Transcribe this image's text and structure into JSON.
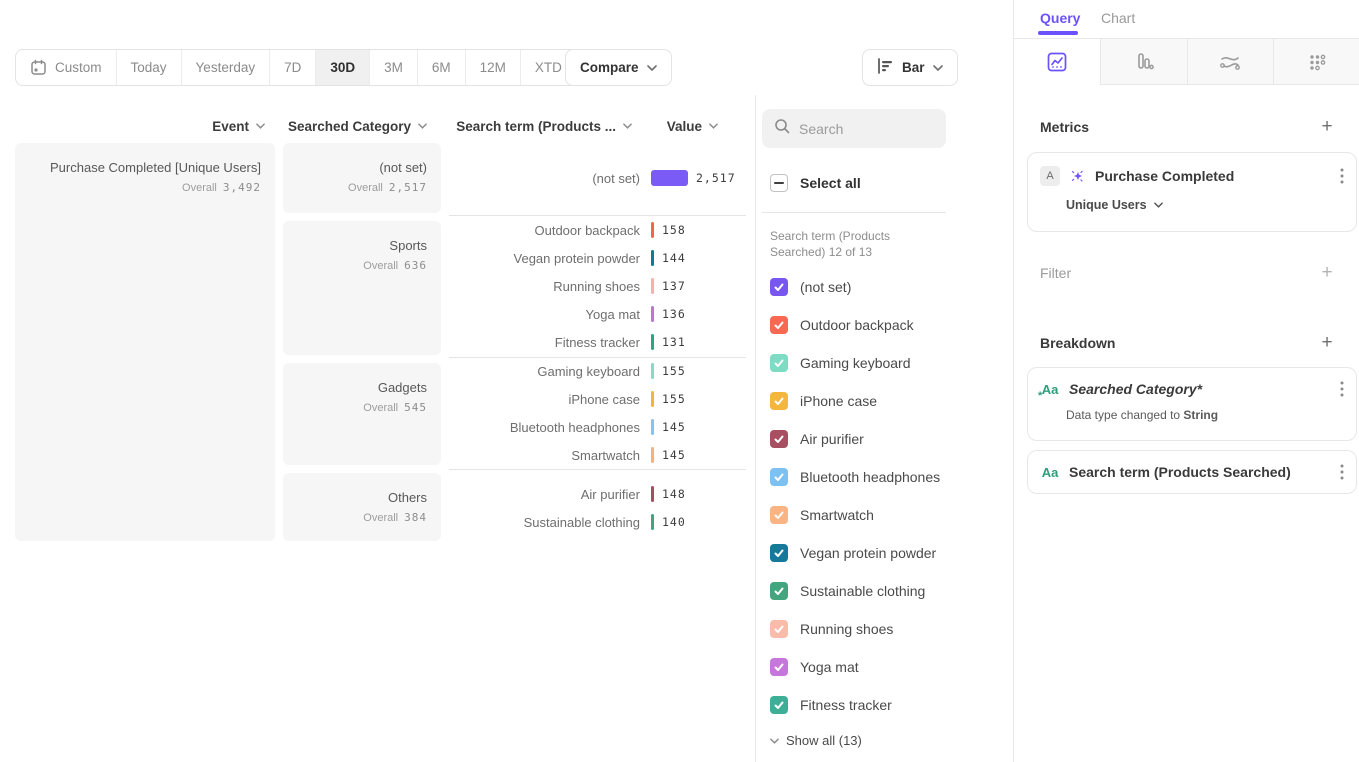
{
  "toolbar": {
    "date_ranges": [
      "Custom",
      "Today",
      "Yesterday",
      "7D",
      "30D",
      "3M",
      "6M",
      "12M",
      "XTD"
    ],
    "active_range": "30D",
    "compare_label": "Compare",
    "chart_type_label": "Bar"
  },
  "table": {
    "columns": [
      "Event",
      "Searched Category",
      "Search term (Products ...",
      "Value"
    ],
    "overall_label": "Overall",
    "event": {
      "name": "Purchase Completed [Unique Users]",
      "overall": "3,492"
    },
    "groups": [
      {
        "category": "(not set)",
        "overall": "2,517",
        "rows": [
          {
            "term": "(not set)",
            "value": "2,517",
            "num": 2517,
            "color": "#7b5bf5"
          }
        ]
      },
      {
        "category": "Sports",
        "overall": "636",
        "rows": [
          {
            "term": "Outdoor backpack",
            "value": "158",
            "num": 158,
            "color": "#f3664a"
          },
          {
            "term": "Vegan protein powder",
            "value": "144",
            "num": 144,
            "color": "#127897"
          },
          {
            "term": "Running shoes",
            "value": "137",
            "num": 137,
            "color": "#f8b1a0"
          },
          {
            "term": "Yoga mat",
            "value": "136",
            "num": 136,
            "color": "#c173d4"
          },
          {
            "term": "Fitness tracker",
            "value": "131",
            "num": 131,
            "color": "#2da583"
          }
        ]
      },
      {
        "category": "Gadgets",
        "overall": "545",
        "rows": [
          {
            "term": "Gaming keyboard",
            "value": "155",
            "num": 155,
            "color": "#82dcc6"
          },
          {
            "term": "iPhone case",
            "value": "155",
            "num": 155,
            "color": "#f6b53a"
          },
          {
            "term": "Bluetooth headphones",
            "value": "145",
            "num": 145,
            "color": "#84c3f3"
          },
          {
            "term": "Smartwatch",
            "value": "145",
            "num": 145,
            "color": "#fbb077"
          }
        ]
      },
      {
        "category": "Others",
        "overall": "384",
        "rows": [
          {
            "term": "Air purifier",
            "value": "148",
            "num": 148,
            "color": "#a84d5f"
          },
          {
            "term": "Sustainable clothing",
            "value": "140",
            "num": 140,
            "color": "#43a47e"
          }
        ]
      }
    ]
  },
  "filter_panel": {
    "search_placeholder": "Search",
    "select_all_label": "Select all",
    "list_label": "Search term (Products Searched) 12 of 13",
    "items": [
      {
        "label": "(not set)",
        "color": "#7857f0",
        "checked": true
      },
      {
        "label": "Outdoor backpack",
        "color": "#f86852",
        "checked": true
      },
      {
        "label": "Gaming keyboard",
        "color": "#7edbc4",
        "checked": true
      },
      {
        "label": "iPhone case",
        "color": "#f5b63e",
        "checked": true
      },
      {
        "label": "Air purifier",
        "color": "#a84f61",
        "checked": true
      },
      {
        "label": "Bluetooth headphones",
        "color": "#7cc1f2",
        "checked": true
      },
      {
        "label": "Smartwatch",
        "color": "#fab383",
        "checked": true
      },
      {
        "label": "Vegan protein powder",
        "color": "#17799a",
        "checked": true
      },
      {
        "label": "Sustainable clothing",
        "color": "#43a57e",
        "checked": true
      },
      {
        "label": "Running shoes",
        "color": "#f9bcab",
        "checked": true
      },
      {
        "label": "Yoga mat",
        "color": "#c577dc",
        "checked": true
      },
      {
        "label": "Fitness tracker",
        "color": "#3fae96",
        "checked": true,
        "textured": true
      }
    ],
    "show_all_label": "Show all (13)"
  },
  "query_panel": {
    "tabs": {
      "query": "Query",
      "chart": "Chart",
      "active": "Query"
    },
    "icon_tabs": [
      "insights",
      "funnels",
      "flows",
      "retention"
    ],
    "metrics": {
      "title": "Metrics",
      "badge": "A",
      "event_name": "Purchase Completed",
      "aggregation": "Unique Users"
    },
    "filter_title": "Filter",
    "breakdown": {
      "title": "Breakdown",
      "items": [
        {
          "icon_label": "Aa",
          "label": "Searched Category*",
          "note_prefix": "Data type changed to ",
          "note_bold": "String"
        },
        {
          "icon_label": "Aa",
          "label": "Search term (Products Searched)"
        }
      ]
    },
    "accent_color": "#6a52fd"
  }
}
